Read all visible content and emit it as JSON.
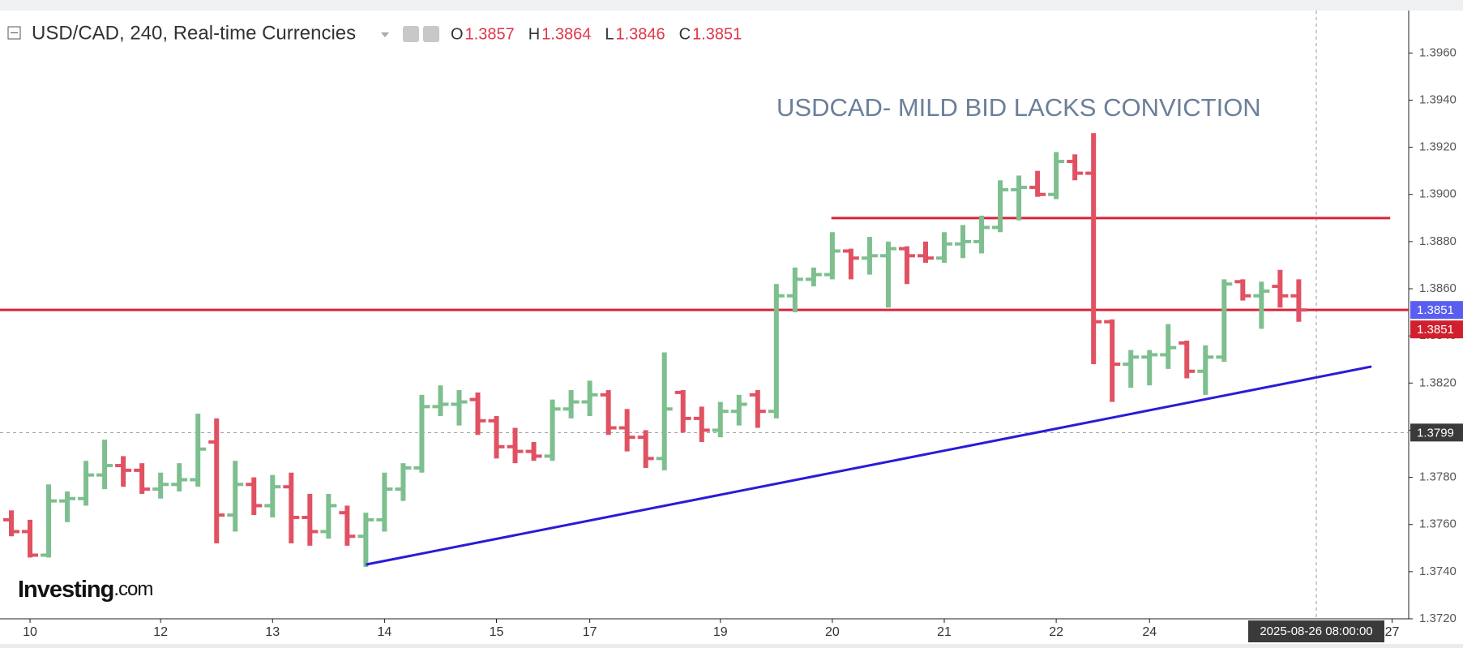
{
  "chart_data": {
    "type": "ohlc",
    "title": "USD/CAD, 240, Real-time Currencies",
    "annotation": "USDCAD- MILD BID LACKS CONVICTION",
    "ohlc_labels": [
      "O",
      "H",
      "L",
      "C"
    ],
    "logo": [
      "Investing",
      ".com"
    ],
    "up_color": "#7dbf8e",
    "down_color": "#e05263",
    "categories": [
      null,
      "10",
      null,
      null,
      null,
      null,
      null,
      null,
      "12",
      null,
      null,
      null,
      null,
      null,
      "13",
      null,
      null,
      null,
      null,
      null,
      "14",
      null,
      null,
      null,
      null,
      null,
      "15",
      null,
      null,
      null,
      null,
      "17",
      null,
      null,
      null,
      null,
      null,
      null,
      "19",
      null,
      null,
      null,
      null,
      null,
      "20",
      null,
      null,
      null,
      null,
      null,
      "21",
      null,
      null,
      null,
      null,
      null,
      "22",
      null,
      null,
      null,
      null,
      "24",
      null,
      null,
      null,
      null,
      null,
      null,
      null,
      null,
      null,
      null,
      null,
      null,
      "27"
    ],
    "open": [
      1.3762,
      1.3757,
      1.3747,
      1.377,
      1.3771,
      1.3781,
      1.3785,
      1.3783,
      1.3775,
      1.3777,
      1.3779,
      1.3795,
      1.3764,
      1.3777,
      1.3768,
      1.3776,
      1.3763,
      1.3757,
      1.3765,
      1.3755,
      1.3762,
      1.3775,
      1.3784,
      1.381,
      1.3811,
      1.3813,
      1.3804,
      1.3793,
      1.3791,
      1.3789,
      1.3809,
      1.3812,
      1.3815,
      1.3801,
      1.3797,
      1.3788,
      1.3816,
      1.3805,
      1.38,
      1.3808,
      1.3815,
      1.3808,
      1.3857,
      1.3864,
      1.3866,
      1.3876,
      1.3873,
      1.3874,
      1.3877,
      1.3874,
      1.3873,
      1.3879,
      1.388,
      1.3886,
      1.3902,
      1.3903,
      1.39,
      1.3914,
      1.3909,
      1.3846,
      1.3828,
      1.3831,
      1.3832,
      1.3837,
      1.3825,
      1.3831,
      1.3863,
      1.3857,
      1.3861,
      1.3857,
      null,
      null,
      null,
      null,
      null
    ],
    "high": [
      1.3766,
      1.3762,
      1.3777,
      1.3774,
      1.3787,
      1.3796,
      1.3789,
      1.3786,
      1.3782,
      1.3786,
      1.3807,
      1.3805,
      1.3787,
      1.378,
      1.3781,
      1.3782,
      1.3773,
      1.3773,
      1.3768,
      1.3765,
      1.3782,
      1.3786,
      1.3815,
      1.3819,
      1.3817,
      1.3816,
      1.3806,
      1.3801,
      1.3795,
      1.3813,
      1.3817,
      1.3821,
      1.3817,
      1.3809,
      1.38,
      1.3833,
      1.3817,
      1.381,
      1.3812,
      1.3815,
      1.3817,
      1.3862,
      1.3869,
      1.3869,
      1.3884,
      1.3877,
      1.3882,
      1.388,
      1.3878,
      1.388,
      1.3884,
      1.3887,
      1.3891,
      1.3906,
      1.3908,
      1.391,
      1.3918,
      1.3917,
      1.3926,
      1.3847,
      1.3834,
      1.3834,
      1.3845,
      1.3838,
      1.3836,
      1.3864,
      1.3864,
      1.3863,
      1.3868,
      1.3864,
      null,
      null,
      null,
      null,
      null
    ],
    "low": [
      1.3755,
      1.3746,
      1.3746,
      1.3761,
      1.3768,
      1.3775,
      1.3776,
      1.3773,
      1.3771,
      1.3774,
      1.3776,
      1.3752,
      1.3757,
      1.3764,
      1.3763,
      1.3752,
      1.3751,
      1.3754,
      1.3751,
      1.3742,
      1.3757,
      1.377,
      1.3782,
      1.3806,
      1.3802,
      1.3798,
      1.3788,
      1.3786,
      1.3787,
      1.3787,
      1.3805,
      1.3806,
      1.3798,
      1.3791,
      1.3784,
      1.3783,
      1.3799,
      1.3795,
      1.3797,
      1.3802,
      1.3801,
      1.3805,
      1.385,
      1.3861,
      1.3864,
      1.3864,
      1.3866,
      1.3852,
      1.3862,
      1.3871,
      1.3871,
      1.3873,
      1.3875,
      1.3884,
      1.3889,
      1.3899,
      1.3898,
      1.3906,
      1.3828,
      1.3812,
      1.3818,
      1.3819,
      1.3826,
      1.3822,
      1.3815,
      1.3829,
      1.3855,
      1.3843,
      1.3852,
      1.3846,
      null,
      null,
      null,
      null,
      null
    ],
    "close": [
      1.3757,
      1.3747,
      1.377,
      1.3771,
      1.3781,
      1.3785,
      1.3783,
      1.3775,
      1.3777,
      1.3779,
      1.3792,
      1.3764,
      1.3777,
      1.3768,
      1.3776,
      1.3763,
      1.3757,
      1.3768,
      1.3755,
      1.3762,
      1.3775,
      1.3784,
      1.381,
      1.3811,
      1.3812,
      1.3804,
      1.3793,
      1.3791,
      1.3789,
      1.3809,
      1.3812,
      1.3815,
      1.3801,
      1.3797,
      1.3788,
      1.3809,
      1.3805,
      1.38,
      1.3808,
      1.3811,
      1.3808,
      1.3857,
      1.3864,
      1.3866,
      1.3876,
      1.3873,
      1.3874,
      1.3877,
      1.3874,
      1.3873,
      1.3879,
      1.388,
      1.3886,
      1.3902,
      1.3903,
      1.39,
      1.3914,
      1.3909,
      1.3846,
      1.3828,
      1.3831,
      1.3832,
      1.3835,
      1.3825,
      1.3831,
      1.3862,
      1.3857,
      1.3859,
      1.3857,
      1.3851,
      null,
      null,
      null,
      null,
      null
    ],
    "ylim": [
      1.372,
      1.3978
    ],
    "yticks": [
      {
        "value": 1.372,
        "label": "1.3720"
      },
      {
        "value": 1.374,
        "label": "1.3740"
      },
      {
        "value": 1.376,
        "label": "1.3760"
      },
      {
        "value": 1.378,
        "label": "1.3780"
      },
      {
        "value": 1.38,
        "label": "1.3800"
      },
      {
        "value": 1.382,
        "label": "1.3820"
      },
      {
        "value": 1.384,
        "label": "1.3840"
      },
      {
        "value": 1.386,
        "label": "1.3860"
      },
      {
        "value": 1.388,
        "label": "1.3880"
      },
      {
        "value": 1.39,
        "label": "1.3900"
      },
      {
        "value": 1.392,
        "label": "1.3920"
      },
      {
        "value": 1.394,
        "label": "1.3940"
      },
      {
        "value": 1.396,
        "label": "1.3960"
      }
    ],
    "resistance": {
      "x": [
        43.95,
        73.9
      ],
      "y": 1.389,
      "color": "#d7263a"
    },
    "level_line": {
      "y": 1.3851,
      "color": "#d7263a",
      "tag_color": "#5a5ef0"
    },
    "trendline": {
      "x": [
        19,
        72.9
      ],
      "y": [
        1.3743,
        1.3827
      ],
      "color": "#2b1bd6"
    },
    "crosshair": {
      "price": 1.3799,
      "time": "2025-08-26 08:00:00"
    }
  }
}
